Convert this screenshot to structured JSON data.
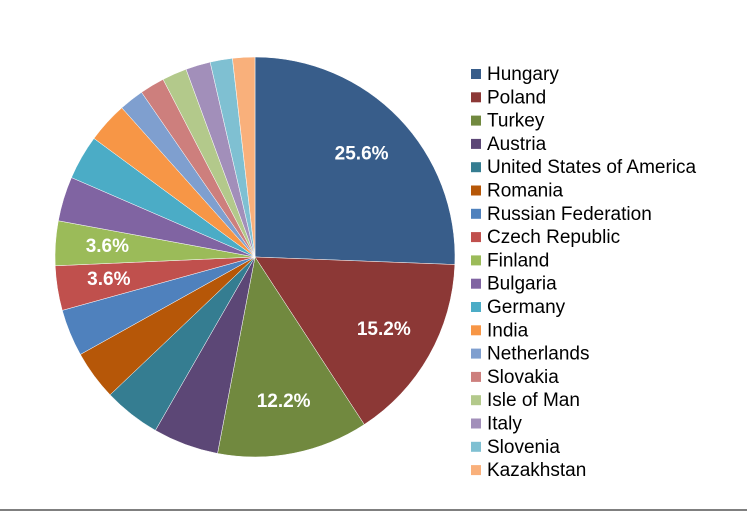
{
  "chart_data": {
    "type": "pie",
    "categories": [
      "Hungary",
      "Poland",
      "Turkey",
      "Austria",
      "United States of America",
      "Romania",
      "Russian Federation",
      "Czech Republic",
      "Finland",
      "Bulgaria",
      "Germany",
      "India",
      "Netherlands",
      "Slovakia",
      "Isle of Man",
      "Italy",
      "Slovenia",
      "Kazakhstan"
    ],
    "values": [
      25.6,
      15.2,
      12.2,
      5.3,
      4.6,
      4.0,
      3.8,
      3.6,
      3.6,
      3.6,
      3.6,
      3.3,
      2.0,
      2.0,
      2.0,
      2.0,
      1.8,
      1.8
    ],
    "value_labels": [
      "25.6%",
      "15.2%",
      "12.2%",
      null,
      null,
      null,
      null,
      "3.6%",
      "3.6%",
      null,
      null,
      null,
      null,
      null,
      null,
      null,
      null,
      null
    ],
    "colors": [
      "#385D8A",
      "#8C3836",
      "#71893F",
      "#5C4776",
      "#357D91",
      "#B65708",
      "#4F81BD",
      "#C0504D",
      "#9BBB59",
      "#8064A2",
      "#4BACC6",
      "#F79646",
      "#7F9FCF",
      "#CD7F7D",
      "#B3C98B",
      "#A28FBA",
      "#7FC0D2",
      "#F9B07B"
    ],
    "legend": "right"
  }
}
